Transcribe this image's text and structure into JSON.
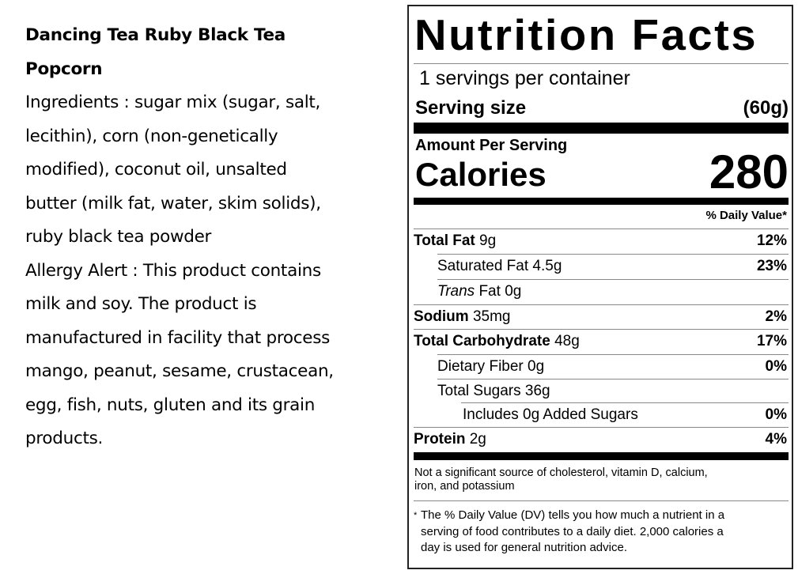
{
  "product": {
    "title_lines": [
      "Dancing Tea Ruby Black Tea",
      "Popcorn"
    ],
    "text_lines": [
      "Ingredients : sugar mix (sugar, salt,",
      "lecithin), corn (non-genetically",
      "modified), coconut oil, unsalted",
      "butter (milk fat, water, skim solids),",
      "ruby black tea powder",
      "Allergy Alert : This product contains",
      "milk and soy. The product is",
      "manufactured in facility that process",
      "mango, peanut, sesame, crustacean,",
      "egg, fish, nuts, gluten and its grain",
      "products."
    ]
  },
  "nutrition": {
    "title": "Nutrition Facts",
    "servings_per_container": "1 servings per container",
    "serving_size_label": "Serving size",
    "serving_size_value": "(60g)",
    "amount_per_serving": "Amount Per Serving",
    "calories_label": "Calories",
    "calories_value": "280",
    "daily_value_header": "% Daily Value*",
    "rows": [
      {
        "label": "Total Fat",
        "amount": "9g",
        "dv": "12%"
      },
      {
        "label": "Saturated Fat",
        "amount": "4.5g",
        "dv": "23%"
      },
      {
        "label_italic": "Trans",
        "label": "Fat",
        "amount": "0g",
        "dv": ""
      },
      {
        "label": "Sodium",
        "amount": "35mg",
        "dv": "2%"
      },
      {
        "label": "Total Carbohydrate",
        "amount": "48g",
        "dv": "17%"
      },
      {
        "label": "Dietary Fiber",
        "amount": "0g",
        "dv": "0%"
      },
      {
        "label": "Total Sugars",
        "amount": "36g",
        "dv": ""
      },
      {
        "label": "Includes 0g Added Sugars",
        "amount": "",
        "dv": "0%"
      },
      {
        "label": "Protein",
        "amount": "2g",
        "dv": "4%"
      }
    ],
    "not_significant": [
      "Not a significant source of cholesterol, vitamin D, calcium,",
      "iron, and potassium"
    ],
    "footnote_star": "*",
    "footnote_lines": [
      "The % Daily Value (DV) tells you how much a nutrient in a",
      "serving of food contributes to a daily diet. 2,000 calories a",
      "day is used for general nutrition advice."
    ]
  }
}
